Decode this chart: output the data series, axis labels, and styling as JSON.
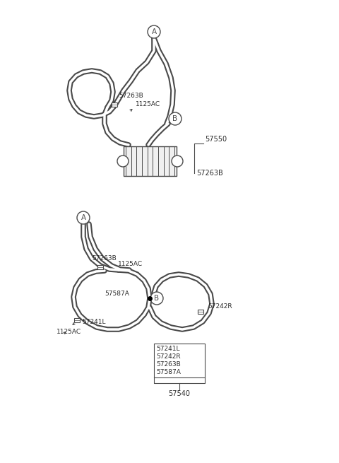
{
  "bg_color": "#ffffff",
  "line_color": "#4a4a4a",
  "text_color": "#2a2a2a",
  "fig_width": 4.8,
  "fig_height": 6.55,
  "dpi": 100,
  "xlim": [
    0,
    480
  ],
  "ylim": [
    655,
    0
  ]
}
